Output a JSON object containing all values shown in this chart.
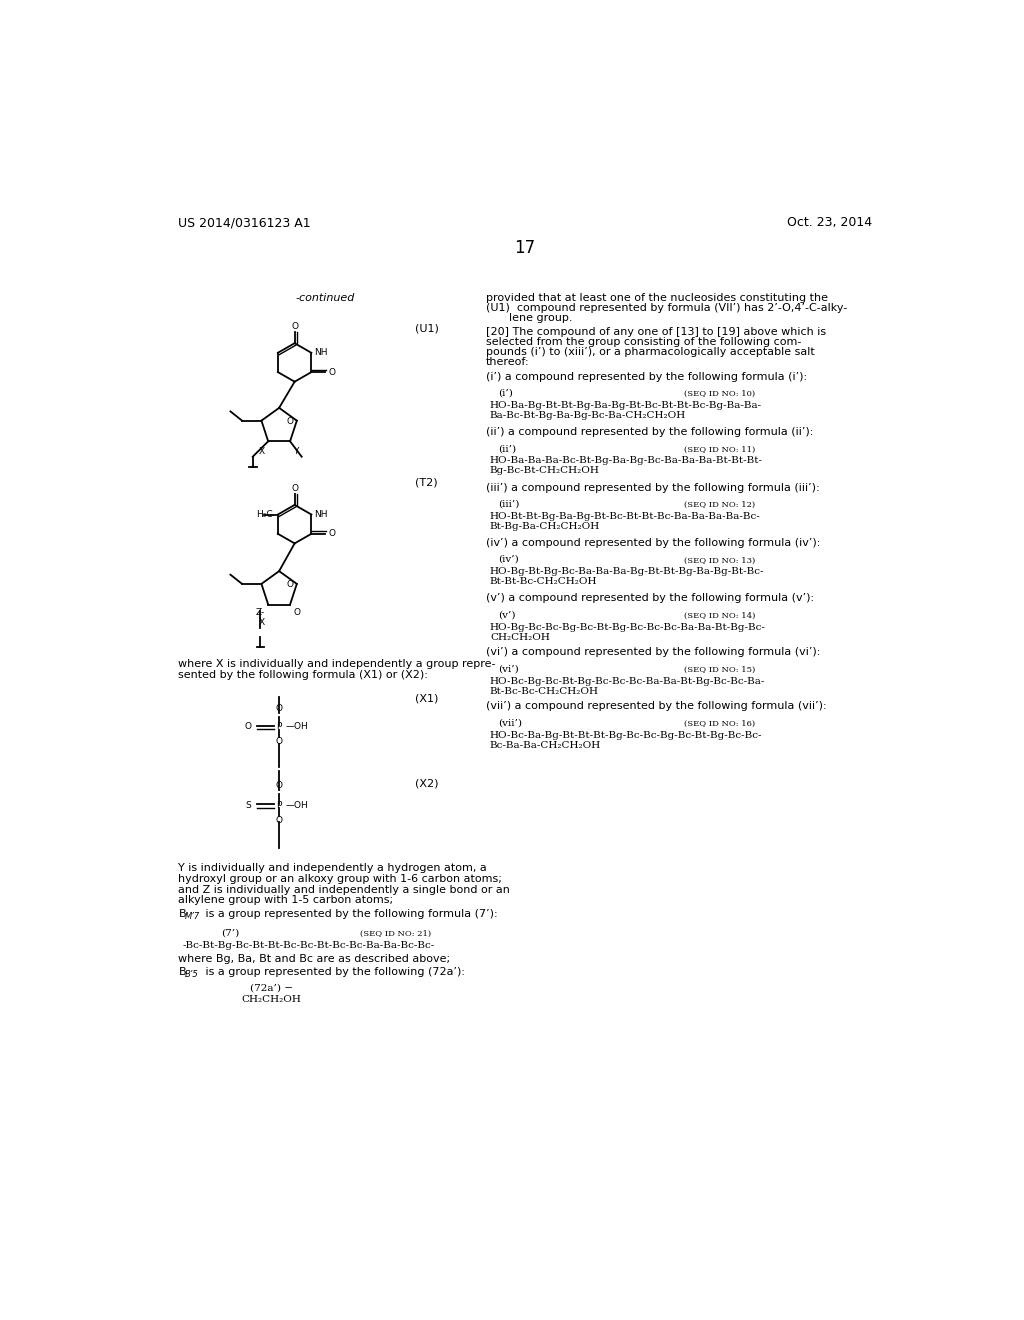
{
  "header_left": "US 2014/0316123 A1",
  "header_right": "Oct. 23, 2014",
  "page_number": "17",
  "background_color": "#ffffff",
  "text_color": "#000000",
  "font_size_body": 8.0,
  "font_size_small": 6.5,
  "font_size_header": 9.0,
  "font_size_page": 12,
  "font_size_mono": 7.5
}
